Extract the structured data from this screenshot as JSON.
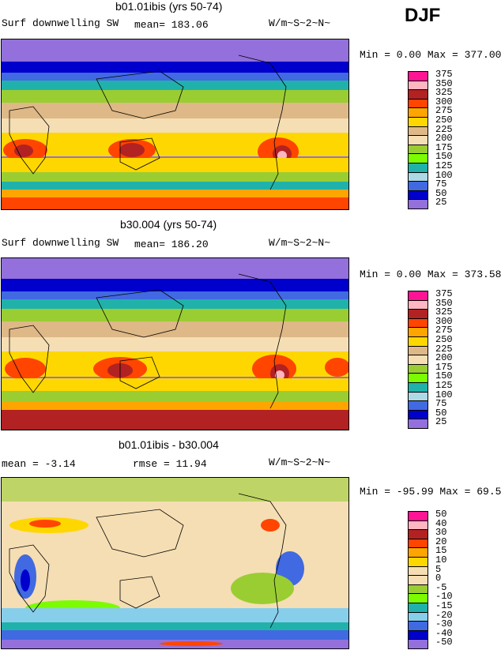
{
  "season": "DJF",
  "panels": [
    {
      "title": "b01.01ibis (yrs 50-74)",
      "left_label": "Surf downwelling SW",
      "stat1": "mean= 183.06",
      "stat2": "",
      "units": "W/m~S~2~N~",
      "minmax": "Min =   0.00 Max = 377.00",
      "levels": [
        "375",
        "350",
        "325",
        "300",
        "275",
        "250",
        "225",
        "200",
        "175",
        "150",
        "125",
        "100",
        "75",
        "50",
        "25"
      ],
      "colors": [
        "#ff1493",
        "#ffb6c1",
        "#b22222",
        "#ff4500",
        "#ffa500",
        "#ffd700",
        "#deb887",
        "#f5deb3",
        "#9acd32",
        "#7cfc00",
        "#20b2aa",
        "#add8e6",
        "#4169e1",
        "#0000cd",
        "#9370db"
      ]
    },
    {
      "title": "b30.004 (yrs 50-74)",
      "left_label": "Surf downwelling SW",
      "stat1": "mean= 186.20",
      "stat2": "",
      "units": "W/m~S~2~N~",
      "minmax": "Min =   0.00 Max = 373.58",
      "levels": [
        "375",
        "350",
        "325",
        "300",
        "275",
        "250",
        "225",
        "200",
        "175",
        "150",
        "125",
        "100",
        "75",
        "50",
        "25"
      ],
      "colors": [
        "#ff1493",
        "#ffb6c1",
        "#b22222",
        "#ff4500",
        "#ffa500",
        "#ffd700",
        "#deb887",
        "#f5deb3",
        "#9acd32",
        "#7cfc00",
        "#20b2aa",
        "#add8e6",
        "#4169e1",
        "#0000cd",
        "#9370db"
      ]
    },
    {
      "title": "b01.01ibis - b30.004",
      "left_label": "mean =  -3.14",
      "stat1": "rmse =  11.94",
      "stat2": "",
      "units": "W/m~S~2~N~",
      "minmax": "Min = -95.99 Max =  69.50",
      "levels": [
        "50",
        "40",
        "30",
        "20",
        "15",
        "10",
        "5",
        "0",
        "-5",
        "-10",
        "-15",
        "-20",
        "-30",
        "-40",
        "-50"
      ],
      "colors": [
        "#ff1493",
        "#ffb6c1",
        "#b22222",
        "#ff4500",
        "#ffa500",
        "#ffd700",
        "#f5deb3",
        "#f5deb3",
        "#9acd32",
        "#7cfc00",
        "#20b2aa",
        "#87ceeb",
        "#4169e1",
        "#0000cd",
        "#9370db"
      ]
    }
  ],
  "chart_data": [
    {
      "type": "heatmap",
      "title": "b01.01ibis (yrs 50-74)",
      "variable": "Surf downwelling SW",
      "units": "W/m~S~2~N~",
      "mean": 183.06,
      "min": 0.0,
      "max": 377.0,
      "contour_levels": [
        25,
        50,
        75,
        100,
        125,
        150,
        175,
        200,
        225,
        250,
        275,
        300,
        325,
        350,
        375
      ]
    },
    {
      "type": "heatmap",
      "title": "b30.004 (yrs 50-74)",
      "variable": "Surf downwelling SW",
      "units": "W/m~S~2~N~",
      "mean": 186.2,
      "min": 0.0,
      "max": 373.58,
      "contour_levels": [
        25,
        50,
        75,
        100,
        125,
        150,
        175,
        200,
        225,
        250,
        275,
        300,
        325,
        350,
        375
      ]
    },
    {
      "type": "heatmap",
      "title": "b01.01ibis - b30.004",
      "units": "W/m~S~2~N~",
      "mean": -3.14,
      "rmse": 11.94,
      "min": -95.99,
      "max": 69.5,
      "contour_levels": [
        -50,
        -40,
        -30,
        -20,
        -15,
        -10,
        -5,
        0,
        5,
        10,
        15,
        20,
        30,
        40,
        50
      ]
    }
  ]
}
